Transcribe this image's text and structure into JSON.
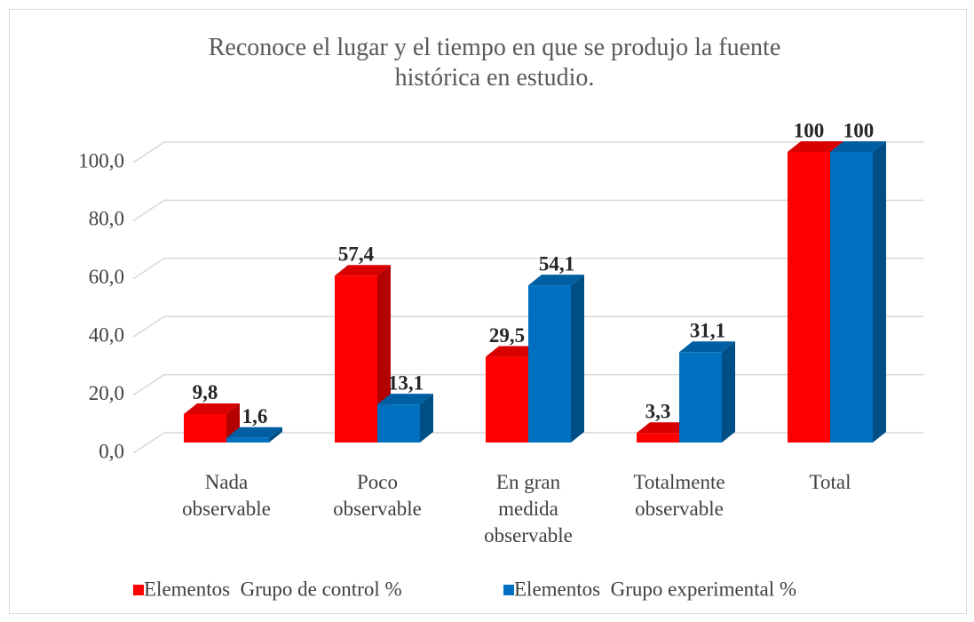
{
  "chart_data": {
    "type": "bar3d",
    "title": "Reconoce el lugar y el tiempo en que se produjo la fuente\nhistórica en estudio.",
    "categories": [
      "Nada\nobservable",
      "Poco\nobservable",
      "En gran\nmedida\nobservable",
      "Totalmente\nobservable",
      "Total"
    ],
    "series": [
      {
        "name": "Elementos  Grupo de control %",
        "color": "#ff0000",
        "values": [
          9.8,
          57.4,
          29.5,
          3.3,
          100
        ],
        "value_labels": [
          "9,8",
          "57,4",
          "29,5",
          "3,3",
          "100"
        ]
      },
      {
        "name": "Elementos  Grupo experimental %",
        "color": "#0070c0",
        "values": [
          1.6,
          13.1,
          54.1,
          31.1,
          100
        ],
        "value_labels": [
          "1,6",
          "13,1",
          "54,1",
          "31,1",
          "100"
        ]
      }
    ],
    "ylim": [
      0,
      100
    ],
    "yticks": [
      {
        "value": 0,
        "label": "0,0"
      },
      {
        "value": 20,
        "label": "20,0"
      },
      {
        "value": 40,
        "label": "40,0"
      },
      {
        "value": 60,
        "label": "60,0"
      },
      {
        "value": 80,
        "label": "80,0"
      },
      {
        "value": 100,
        "label": "100,0"
      }
    ],
    "grid": true,
    "legend": "bottom"
  }
}
